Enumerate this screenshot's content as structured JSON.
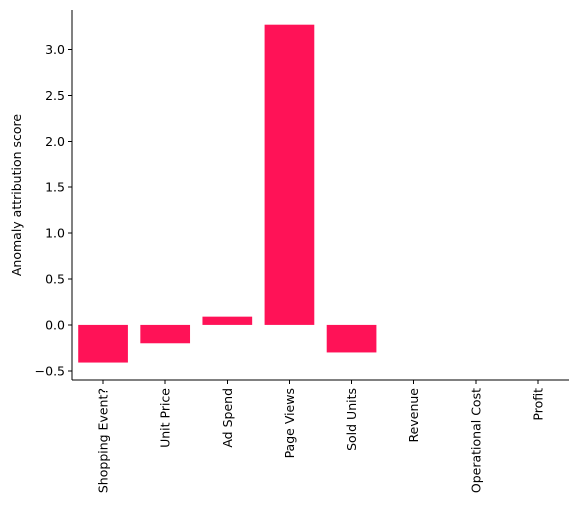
{
  "chart_data": {
    "type": "bar",
    "title": "",
    "xlabel": "",
    "ylabel": "Anomaly attribution score",
    "categories": [
      "Shopping Event?",
      "Unit Price",
      "Ad Spend",
      "Page Views",
      "Sold Units",
      "Revenue",
      "Operational Cost",
      "Profit"
    ],
    "values": [
      -0.41,
      -0.2,
      0.09,
      3.27,
      -0.3,
      0,
      0,
      0
    ],
    "ylim": [
      -0.6,
      3.43
    ],
    "yticks": [
      -0.5,
      0.0,
      0.5,
      1.0,
      1.5,
      2.0,
      2.5,
      3.0
    ],
    "ytick_labels": [
      "−0.5",
      "0.0",
      "0.5",
      "1.0",
      "1.5",
      "2.0",
      "2.5",
      "3.0"
    ],
    "bar_color": "#FF1257",
    "grid": false,
    "legend": "none",
    "spines": [
      "left",
      "bottom"
    ]
  }
}
